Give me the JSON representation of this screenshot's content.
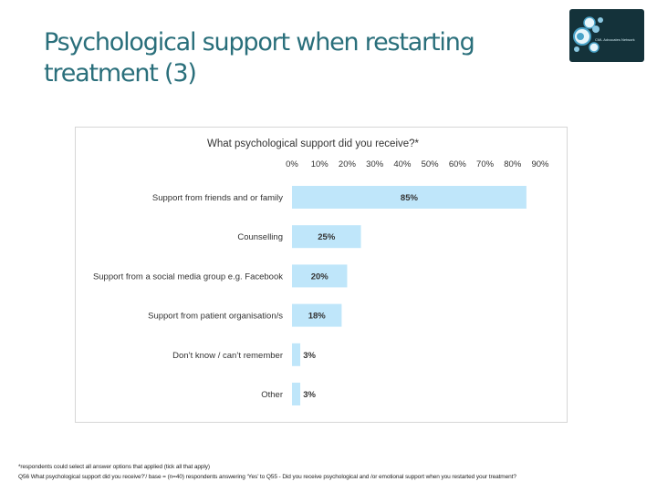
{
  "slide": {
    "title_line1": "Psychological support when restarting",
    "title_line2": "treatment (3)"
  },
  "logo": {
    "text": "CML Advocates Network",
    "icon": "network-dots-icon"
  },
  "colors": {
    "title": "#2a6f7b",
    "bar": "#bfe6fa",
    "logo_bg": "#14323a",
    "text": "#333333"
  },
  "chart_data": {
    "type": "bar",
    "orientation": "horizontal",
    "title": "What psychological support did you receive?*",
    "categories": [
      "Support from friends and or family",
      "Counselling",
      "Support from a social media group e.g. Facebook",
      "Support from patient organisation/s",
      "Don’t know / can’t remember",
      "Other"
    ],
    "values": [
      85,
      25,
      20,
      18,
      3,
      3
    ],
    "value_labels": [
      "85%",
      "25%",
      "20%",
      "18%",
      "3%",
      "3%"
    ],
    "x_ticks": [
      "0%",
      "10%",
      "20%",
      "30%",
      "40%",
      "50%",
      "60%",
      "70%",
      "80%",
      "90%"
    ],
    "xlim": [
      0,
      90
    ],
    "x_axis_position": "top",
    "grid": false
  },
  "footnotes": {
    "line1": "*respondents could select all answer options that applied (tick all that apply)",
    "line2": "Q56 What psychological support did you receive?’/ base = (n=40) respondents answering ‘Yes’ to Q55 - Did you receive psychological and /or emotional support when you restarted your treatment?"
  }
}
